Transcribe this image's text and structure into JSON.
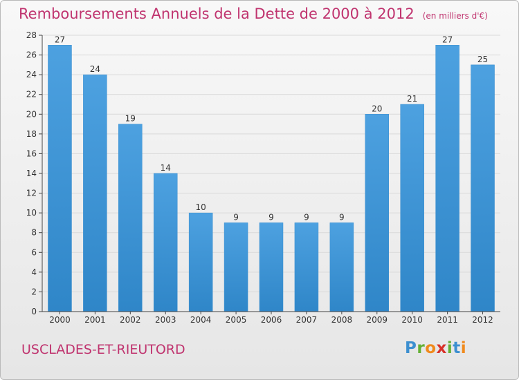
{
  "title": "Remboursements Annuels de la Dette de 2000 à 2012",
  "unit": "(en milliers d'€)",
  "commune": "USCLADES-ET-RIEUTORD",
  "brand": {
    "letters": [
      "P",
      "r",
      "o",
      "x",
      "i",
      "t",
      "i"
    ],
    "colors": [
      "#3c8fd0",
      "#63b034",
      "#f08a1c",
      "#d8322a",
      "#63b034",
      "#3c8fd0",
      "#f08a1c"
    ]
  },
  "colors": {
    "bar": "#4da1e0",
    "bar_dark": "#2f86c8",
    "title": "#c0346f",
    "axis": "#444444",
    "grid": "#d9d9d9"
  },
  "chart_data": {
    "type": "bar",
    "categories": [
      "2000",
      "2001",
      "2002",
      "2003",
      "2004",
      "2005",
      "2006",
      "2007",
      "2008",
      "2009",
      "2010",
      "2011",
      "2012"
    ],
    "values": [
      27,
      24,
      19,
      14,
      10,
      9,
      9,
      9,
      9,
      20,
      21,
      27,
      25
    ],
    "ylim": [
      0,
      28
    ],
    "yticks": [
      0,
      2,
      4,
      6,
      8,
      10,
      12,
      14,
      16,
      18,
      20,
      22,
      24,
      26,
      28
    ],
    "grid": true
  }
}
